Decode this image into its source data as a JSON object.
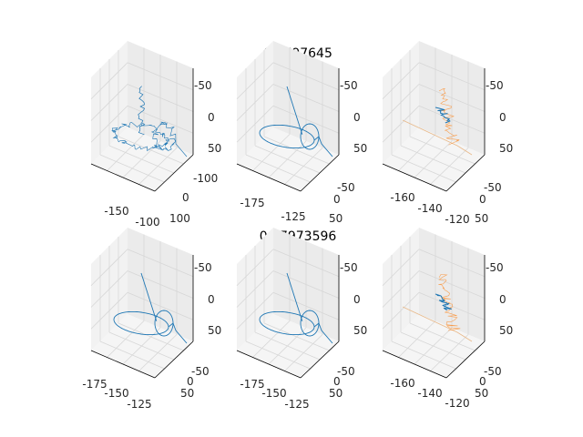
{
  "figure": {
    "row_titles": [
      "0.6797645",
      "0.67973596"
    ],
    "colors": {
      "trace": "#1f77b4",
      "overlay": "#ff7f0e",
      "grid": "#d7d7d7",
      "pane": "#f2f2f2"
    }
  },
  "chart_data": [
    {
      "type": "line",
      "projection": "3d",
      "panel": "row1-col1",
      "x_ticks": [
        "-150",
        "-100"
      ],
      "y_ticks": [
        "-100",
        "0",
        "100"
      ],
      "z_ticks": [
        "-50",
        "0",
        "50"
      ],
      "series": [
        {
          "shape": "noisy-loop-with-vertical-spike",
          "colors": [
            "#1f77b4"
          ]
        }
      ]
    },
    {
      "type": "line",
      "projection": "3d",
      "panel": "row1-col2",
      "x_ticks": [
        "-175",
        "-125"
      ],
      "y_ticks": [
        "-50",
        "0",
        "50"
      ],
      "z_ticks": [
        "-50",
        "0",
        "50"
      ],
      "series": [
        {
          "shape": "ellipse-loop-with-vertical-spike",
          "colors": [
            "#1f77b4"
          ]
        }
      ]
    },
    {
      "type": "line",
      "projection": "3d",
      "panel": "row1-col3",
      "x_ticks": [
        "-160",
        "-140",
        "-120"
      ],
      "y_ticks": [
        "-50",
        "0",
        "50"
      ],
      "z_ticks": [
        "-50",
        "0",
        "50"
      ],
      "series": [
        {
          "shape": "thin-tail-and-spike",
          "colors": [
            "#1f77b4",
            "#ff7f0e"
          ]
        }
      ]
    },
    {
      "type": "line",
      "projection": "3d",
      "panel": "row2-col1",
      "x_ticks": [
        "-175",
        "-150",
        "-125"
      ],
      "y_ticks": [
        "-50",
        "0",
        "50"
      ],
      "z_ticks": [
        "-50",
        "0",
        "50"
      ],
      "series": [
        {
          "shape": "clean-ellipse-loop-with-spike",
          "colors": [
            "#1f77b4"
          ]
        }
      ]
    },
    {
      "type": "line",
      "projection": "3d",
      "panel": "row2-col2",
      "x_ticks": [
        "-175",
        "-150",
        "-125"
      ],
      "y_ticks": [
        "-50",
        "0",
        "50"
      ],
      "z_ticks": [
        "-50",
        "0",
        "50"
      ],
      "series": [
        {
          "shape": "ellipse-loop-with-vertical-spike",
          "colors": [
            "#1f77b4"
          ]
        }
      ]
    },
    {
      "type": "line",
      "projection": "3d",
      "panel": "row2-col3",
      "x_ticks": [
        "-160",
        "-140",
        "-120"
      ],
      "y_ticks": [
        "-50",
        "0",
        "50"
      ],
      "z_ticks": [
        "-50",
        "0",
        "50"
      ],
      "series": [
        {
          "shape": "thin-tail-and-spike",
          "colors": [
            "#1f77b4",
            "#ff7f0e"
          ]
        }
      ]
    }
  ]
}
